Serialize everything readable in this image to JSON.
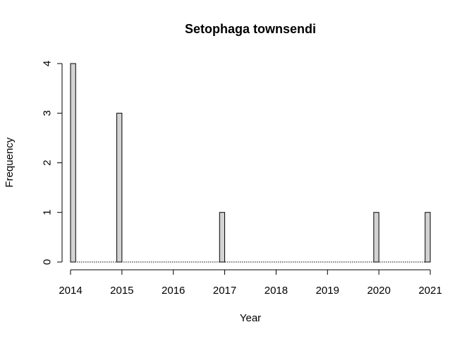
{
  "chart_data": {
    "type": "bar",
    "title": "Setophaga townsendi",
    "xlabel": "Year",
    "ylabel": "Frequency",
    "bin_width": 0.1,
    "xlim": [
      2014,
      2021
    ],
    "ylim": [
      0,
      4
    ],
    "x_ticks": [
      "2014",
      "2015",
      "2016",
      "2017",
      "2018",
      "2019",
      "2020",
      "2021"
    ],
    "y_ticks": [
      "0",
      "1",
      "2",
      "3",
      "4"
    ],
    "bins": [
      {
        "start": 2014.0,
        "end": 2014.1,
        "value": 4
      },
      {
        "start": 2014.9,
        "end": 2015.0,
        "value": 3
      },
      {
        "start": 2016.9,
        "end": 2017.0,
        "value": 1
      },
      {
        "start": 2019.9,
        "end": 2020.0,
        "value": 1
      },
      {
        "start": 2020.9,
        "end": 2021.0,
        "value": 1
      }
    ],
    "fill_color": "#d3d3d3",
    "grid": false
  }
}
